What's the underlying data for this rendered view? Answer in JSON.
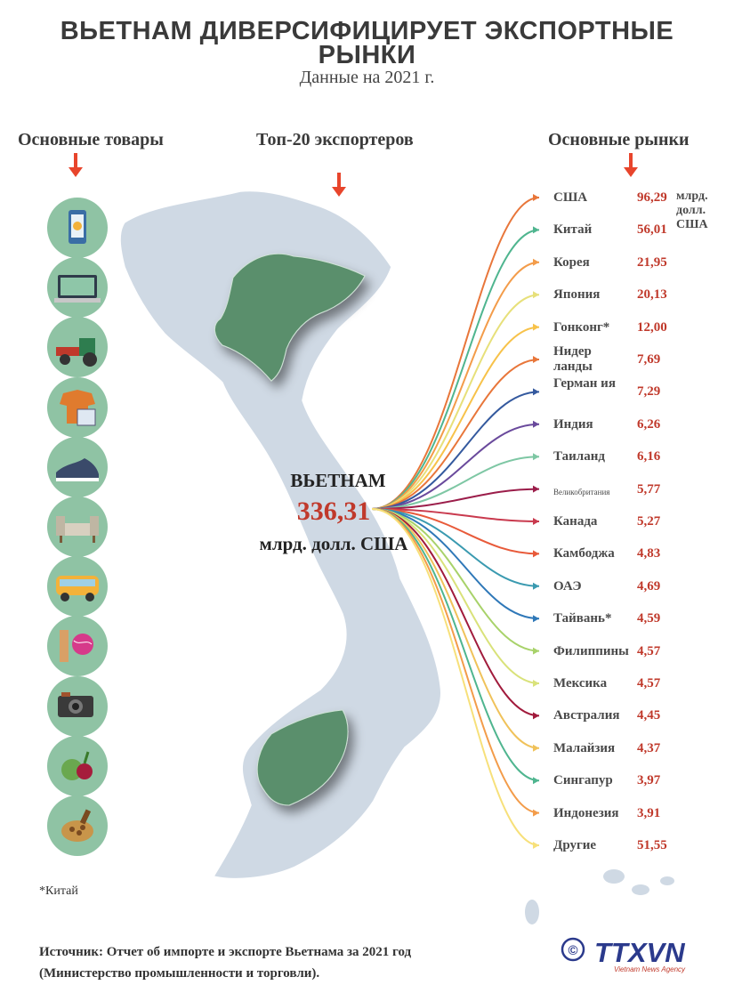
{
  "header": {
    "title": "ВЬЕТНАМ ДИВЕРСИФИЦИРУЕТ ЭКСПОРТНЫЕ РЫНКИ",
    "subtitle": "Данные на 2021 г."
  },
  "columns": {
    "goods": "Основные товары",
    "exporters": "Топ-20 экспортеров",
    "markets": "Основные рынки"
  },
  "center": {
    "country": "ВЬЕТНАМ",
    "total": "336,31",
    "unit": "млрд. долл. США"
  },
  "unit_note": "млрд. долл. США",
  "goods_icons": [
    "phone-icon",
    "electronics-icon",
    "machinery-icon",
    "textile-icon",
    "footwear-icon",
    "furniture-icon",
    "vehicle-icon",
    "yarn-icon",
    "camera-icon",
    "vegetables-icon",
    "nuts-icon"
  ],
  "markets": [
    {
      "name": "США",
      "value": "96,29",
      "color": "#e8763a"
    },
    {
      "name": "Китай",
      "value": "56,01",
      "color": "#4fb58f"
    },
    {
      "name": "Корея",
      "value": "21,95",
      "color": "#f39c4a"
    },
    {
      "name": "Япония",
      "value": "20,13",
      "color": "#e7e07a"
    },
    {
      "name": "Гонконг*",
      "value": "12,00",
      "color": "#f7c24a"
    },
    {
      "name": "Нидер ланды",
      "value": "7,69",
      "color": "#e8763a"
    },
    {
      "name": "Герман ия",
      "value": "7,29",
      "color": "#34599e"
    },
    {
      "name": "Индия",
      "value": "6,26",
      "color": "#6a4a9c"
    },
    {
      "name": "Таиланд",
      "value": "6,16",
      "color": "#7ec7a4"
    },
    {
      "name": "Великобритания",
      "value": "5,77",
      "color": "#9b1d4a"
    },
    {
      "name": "Канада",
      "value": "5,27",
      "color": "#c93a4e"
    },
    {
      "name": "Камбоджа",
      "value": "4,83",
      "color": "#e85a3a"
    },
    {
      "name": "ОАЭ",
      "value": "4,69",
      "color": "#3a9ab0"
    },
    {
      "name": "Тайвань*",
      "value": "4,59",
      "color": "#2f78b8"
    },
    {
      "name": "Филиппины",
      "value": "4,57",
      "color": "#a8d26a"
    },
    {
      "name": "Мексика",
      "value": "4,57",
      "color": "#d9e27a"
    },
    {
      "name": "Австралия",
      "value": "4,45",
      "color": "#a11b3c"
    },
    {
      "name": "Малайзия",
      "value": "4,37",
      "color": "#f0c25a"
    },
    {
      "name": "Сингапур",
      "value": "3,97",
      "color": "#4fb58f"
    },
    {
      "name": "Индонезия",
      "value": "3,91",
      "color": "#f39c4a"
    },
    {
      "name": "Другие",
      "value": "51,55",
      "color": "#f7e07a"
    }
  ],
  "footnote": "*Китай",
  "source": {
    "line1": "Источник: Отчет об импорте и экспорте Вьетнама за 2021 год",
    "line2": "(Министерство промышленности и торговли)."
  },
  "logo": {
    "copyright": "©",
    "brand": "TTXVN",
    "tagline": "Vietnam News Agency"
  },
  "colors": {
    "map": "#cfd9e4",
    "map_highlight": "#5a8f6c",
    "icon_bg": "#8fc3a4",
    "value_red": "#c0392b",
    "arrow_red": "#e8452c"
  }
}
